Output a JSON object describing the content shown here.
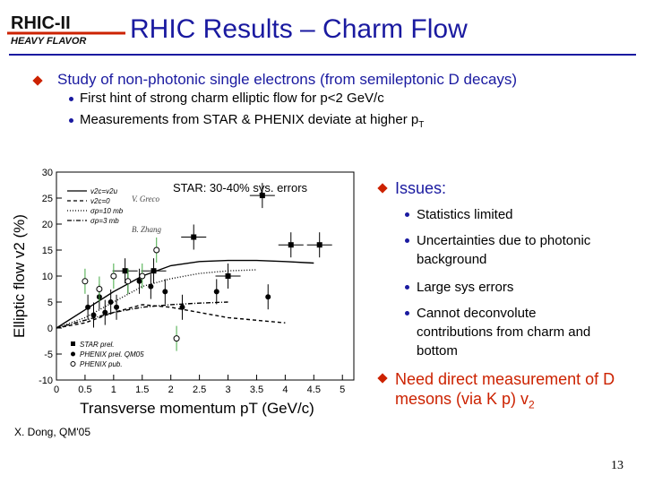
{
  "logo": {
    "line1": "RHIC-II",
    "line2": "HEAVY FLAVOR"
  },
  "title": "RHIC Results – Charm Flow",
  "bullet1": "Study of non-photonic single electrons (from semileptonic D decays)",
  "sub1": "First hint of strong charm elliptic flow for p<2 GeV/c",
  "sub2_prefix": "Measurements from STAR & PHENIX deviate at higher p",
  "sub2_subscript": "T",
  "plot_annotation": "STAR: 30-40% sys. errors",
  "issues": {
    "title": "Issues:",
    "items": [
      "Statistics limited",
      "Uncertainties due to photonic background",
      "Large sys errors",
      "Cannot deconvolute contributions from charm and bottom"
    ]
  },
  "need": {
    "text": "Need direct measurement of D mesons (via K p) v",
    "subscript": "2"
  },
  "credit": "X. Dong, QM'05",
  "page_number": "13",
  "chart_data": {
    "type": "scatter",
    "xlabel": "Transverse momentum pT (GeV/c)",
    "ylabel": "Elliptic flow v2 (%)",
    "xlim": [
      0,
      5.2
    ],
    "ylim": [
      -10,
      30
    ],
    "xticks": [
      "0",
      "0.5",
      "1",
      "1.5",
      "2",
      "2.5",
      "3",
      "3.5",
      "4",
      "4.5",
      "5"
    ],
    "yticks": [
      "-10",
      "-5",
      "0",
      "5",
      "10",
      "15",
      "20",
      "25",
      "30"
    ],
    "legend_top": [
      "v2c=v2u",
      "v2c=0",
      "σp=10 mb",
      "σp=3 mb"
    ],
    "legend_top_authors": [
      "V. Greco",
      "B. Zhang"
    ],
    "legend_bottom": [
      "STAR prel.",
      "PHENIX prel. QM05",
      "PHENIX pub."
    ],
    "series": [
      {
        "name": "STAR prel.",
        "points": [
          [
            1.2,
            11
          ],
          [
            1.7,
            11
          ],
          [
            2.4,
            17.5
          ],
          [
            3.0,
            10
          ],
          [
            3.6,
            25.5
          ],
          [
            4.1,
            16
          ],
          [
            4.6,
            16
          ]
        ]
      },
      {
        "name": "PHENIX prel. QM05",
        "points": [
          [
            0.55,
            4
          ],
          [
            0.65,
            2.5
          ],
          [
            0.75,
            6
          ],
          [
            0.85,
            3
          ],
          [
            0.95,
            5
          ],
          [
            1.05,
            4
          ],
          [
            1.25,
            9
          ],
          [
            1.45,
            9
          ],
          [
            1.65,
            8
          ],
          [
            1.9,
            7
          ],
          [
            2.2,
            4
          ],
          [
            2.8,
            7
          ],
          [
            3.7,
            6
          ]
        ]
      },
      {
        "name": "PHENIX pub.",
        "points": [
          [
            0.5,
            9
          ],
          [
            0.75,
            7.5
          ],
          [
            1.0,
            10
          ],
          [
            1.25,
            9
          ],
          [
            1.5,
            10
          ],
          [
            1.75,
            15
          ],
          [
            2.1,
            -2
          ]
        ]
      }
    ],
    "curves": [
      {
        "name": "v2c=v2u",
        "points": [
          [
            0,
            0
          ],
          [
            0.5,
            3.5
          ],
          [
            1,
            7
          ],
          [
            1.5,
            10
          ],
          [
            2,
            12
          ],
          [
            2.5,
            12.8
          ],
          [
            3,
            13
          ],
          [
            3.5,
            13
          ],
          [
            4,
            12.8
          ],
          [
            4.5,
            12.5
          ]
        ]
      },
      {
        "name": "v2c=0",
        "points": [
          [
            0,
            0
          ],
          [
            0.5,
            1
          ],
          [
            1,
            3
          ],
          [
            1.5,
            4.5
          ],
          [
            2,
            4
          ],
          [
            2.5,
            3
          ],
          [
            3,
            2
          ],
          [
            3.5,
            1.5
          ],
          [
            4,
            1
          ]
        ]
      },
      {
        "name": "σp=10 mb",
        "points": [
          [
            0,
            0
          ],
          [
            0.5,
            2
          ],
          [
            1,
            5
          ],
          [
            1.5,
            8
          ],
          [
            2,
            9.5
          ],
          [
            2.5,
            10.5
          ],
          [
            3,
            11
          ],
          [
            3.5,
            11.2
          ]
        ]
      },
      {
        "name": "σp=3 mb",
        "points": [
          [
            0,
            0
          ],
          [
            0.5,
            1.5
          ],
          [
            1,
            3
          ],
          [
            1.5,
            4
          ],
          [
            2,
            4.5
          ],
          [
            2.5,
            4.8
          ],
          [
            3,
            5
          ]
        ]
      }
    ]
  }
}
